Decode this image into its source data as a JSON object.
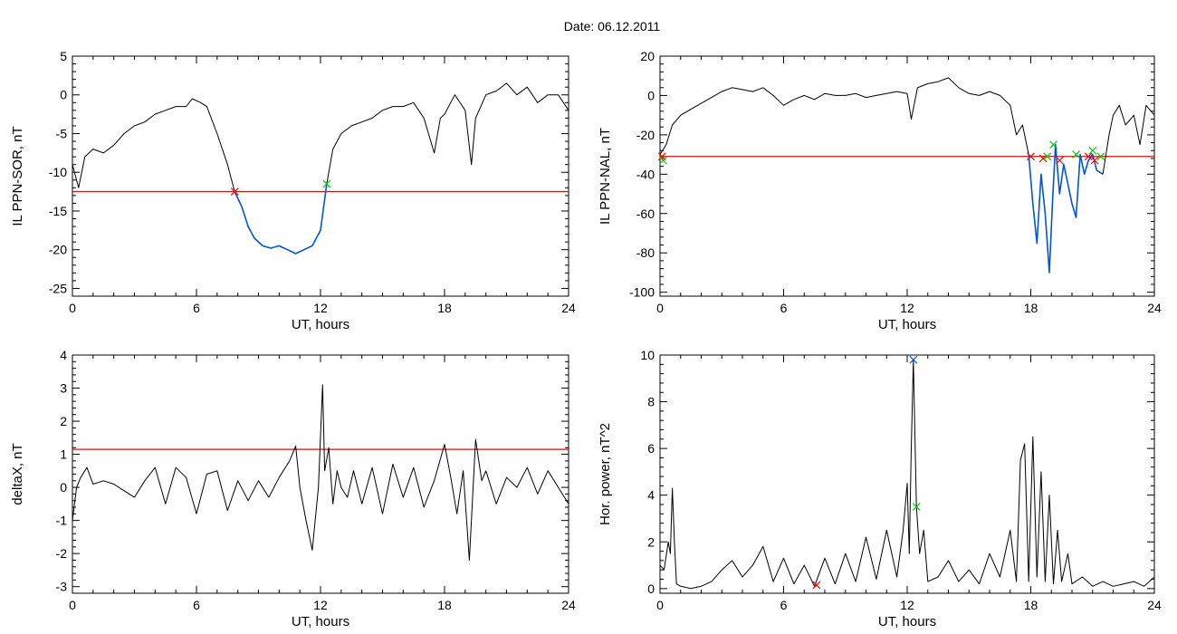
{
  "page": {
    "title": "Date:  06.12.2011"
  },
  "colors": {
    "axis": "#000000",
    "trace": "#000000",
    "threshold": "#ff0000",
    "segment": "#0055dd",
    "start_marker": "#ff0000",
    "end_marker": "#00cc00",
    "peak_marker": "#0055dd"
  },
  "chart_data": [
    {
      "id": "sor",
      "type": "line",
      "title": "",
      "xlabel": "UT, hours",
      "ylabel": "IL PPN-SOR, nT",
      "xlim": [
        0,
        24
      ],
      "ylim": [
        -26,
        5
      ],
      "xticks": [
        0,
        6,
        12,
        18,
        24
      ],
      "yticks": [
        5,
        0,
        -5,
        -10,
        -15,
        -20,
        -25
      ],
      "threshold": -12.5,
      "series": [
        {
          "style": "trace",
          "x": [
            0,
            0.3,
            0.6,
            1,
            1.5,
            2,
            2.5,
            3,
            3.5,
            4,
            4.5,
            5,
            5.5,
            5.8,
            6.2,
            6.5,
            7,
            7.5,
            7.85,
            8.2,
            8.5,
            8.8,
            9.2,
            9.6,
            10,
            10.4,
            10.8,
            11.2,
            11.6,
            12,
            12.3
          ],
          "y": [
            -9,
            -12,
            -8,
            -7,
            -7.5,
            -6.5,
            -5,
            -4,
            -3.5,
            -2.5,
            -2,
            -1.5,
            -1.5,
            -0.5,
            -1,
            -1.5,
            -5,
            -9,
            -12.5,
            -14.5,
            -17,
            -18.5,
            -19.5,
            -19.8,
            -19.5,
            -20,
            -20.5,
            -20,
            -19.5,
            -17.5,
            -11.5
          ]
        },
        {
          "style": "segment",
          "x": [
            7.85,
            8.2,
            8.5,
            8.8,
            9.2,
            9.6,
            10,
            10.4,
            10.8,
            11.2,
            11.6,
            12,
            12.3
          ],
          "y": [
            -12.5,
            -14.5,
            -17,
            -18.5,
            -19.5,
            -19.8,
            -19.5,
            -20,
            -20.5,
            -20,
            -19.5,
            -17.5,
            -11.5
          ]
        },
        {
          "style": "trace",
          "x": [
            12.3,
            12.6,
            13,
            13.5,
            14,
            14.5,
            15,
            15.5,
            16,
            16.5,
            17,
            17.5,
            17.8,
            18,
            18.5,
            19,
            19.3,
            19.5,
            20,
            20.5,
            21,
            21.5,
            22,
            22.5,
            23,
            23.5,
            24
          ],
          "y": [
            -11.5,
            -7,
            -5,
            -4,
            -3.5,
            -3,
            -2,
            -1.5,
            -1.5,
            -1,
            -3,
            -7.5,
            -3,
            -2.5,
            0,
            -2,
            -9,
            -3,
            0,
            0.5,
            1.5,
            0,
            1,
            -1,
            0,
            0,
            -2
          ]
        }
      ],
      "markers": [
        {
          "style": "start",
          "x": 7.85,
          "y": -12.5
        },
        {
          "style": "end",
          "x": 12.3,
          "y": -11.5
        }
      ]
    },
    {
      "id": "nal",
      "type": "line",
      "title": "",
      "xlabel": "UT, hours",
      "ylabel": "IL PPN-NAL, nT",
      "xlim": [
        0,
        24
      ],
      "ylim": [
        -102,
        20
      ],
      "xticks": [
        0,
        6,
        12,
        18,
        24
      ],
      "yticks": [
        20,
        0,
        -20,
        -40,
        -60,
        -80,
        -100
      ],
      "threshold": -31,
      "series": [
        {
          "style": "trace",
          "x": [
            0,
            0.3,
            0.6,
            1,
            1.5,
            2,
            2.5,
            3,
            3.5,
            4,
            4.5,
            5,
            5.5,
            6,
            6.5,
            7,
            7.5,
            8,
            8.5,
            9,
            9.5,
            10,
            10.5,
            11,
            11.5,
            12,
            12.2,
            12.5,
            13,
            13.5,
            14,
            14.5,
            15,
            15.5,
            16,
            16.5,
            17,
            17.3,
            17.6,
            17.9
          ],
          "y": [
            -30,
            -25,
            -15,
            -10,
            -7,
            -4,
            -1,
            2,
            4,
            3,
            2,
            4,
            0,
            -5,
            -2,
            0,
            -2,
            1,
            0,
            0,
            1,
            -1,
            0,
            1,
            2,
            1,
            -12,
            4,
            6,
            7,
            9,
            4,
            1,
            0,
            2,
            0,
            -5,
            -20,
            -15,
            -30
          ]
        },
        {
          "style": "segment",
          "x": [
            17.9,
            18.1,
            18.3,
            18.5,
            18.7,
            18.9,
            19.05,
            19.2,
            19.4,
            19.6,
            19.8,
            20,
            20.2,
            20.4,
            20.6,
            20.8,
            21,
            21.2,
            21.5
          ],
          "y": [
            -30,
            -55,
            -75,
            -40,
            -60,
            -90,
            -55,
            -25,
            -50,
            -35,
            -45,
            -55,
            -62,
            -30,
            -40,
            -33,
            -30,
            -38,
            -40
          ]
        },
        {
          "style": "trace",
          "x": [
            21.5,
            21.8,
            22,
            22.3,
            22.6,
            23,
            23.3,
            23.6,
            24
          ],
          "y": [
            -40,
            -20,
            -10,
            -5,
            -15,
            -10,
            -25,
            -5,
            -10
          ]
        }
      ],
      "markers": [
        {
          "style": "start",
          "x": 0.1,
          "y": -31
        },
        {
          "style": "end",
          "x": 0.15,
          "y": -33
        },
        {
          "style": "start",
          "x": 18,
          "y": -31
        },
        {
          "style": "start",
          "x": 18.6,
          "y": -32
        },
        {
          "style": "end",
          "x": 18.8,
          "y": -31
        },
        {
          "style": "end",
          "x": 19.1,
          "y": -25
        },
        {
          "style": "start",
          "x": 19.4,
          "y": -33
        },
        {
          "style": "end",
          "x": 20.2,
          "y": -30
        },
        {
          "style": "start",
          "x": 20.8,
          "y": -31
        },
        {
          "style": "end",
          "x": 21,
          "y": -28
        },
        {
          "style": "start",
          "x": 21.1,
          "y": -33
        },
        {
          "style": "end",
          "x": 21.4,
          "y": -31
        }
      ]
    },
    {
      "id": "deltax",
      "type": "line",
      "title": "",
      "xlabel": "UT, hours",
      "ylabel": "deltaX, nT",
      "xlim": [
        0,
        24
      ],
      "ylim": [
        -3.2,
        4
      ],
      "xticks": [
        0,
        6,
        12,
        18,
        24
      ],
      "yticks": [
        4,
        3,
        2,
        1,
        0,
        -1,
        -2,
        -3
      ],
      "threshold": 1.15,
      "series": [
        {
          "style": "trace",
          "x": [
            0,
            0.2,
            0.4,
            0.7,
            1,
            1.5,
            2,
            2.5,
            3,
            3.5,
            4,
            4.5,
            5,
            5.5,
            6,
            6.5,
            7,
            7.5,
            8,
            8.5,
            9,
            9.5,
            10,
            10.5,
            10.8,
            11,
            11.3,
            11.6,
            11.9,
            12.1,
            12.2,
            12.4,
            12.6,
            12.8,
            13,
            13.3,
            13.6,
            14,
            14.5,
            15,
            15.5,
            16,
            16.5,
            17,
            17.5,
            18,
            18.3,
            18.6,
            18.9,
            19.2,
            19.5,
            19.8,
            20,
            20.5,
            21,
            21.5,
            22,
            22.5,
            23,
            23.5,
            24
          ],
          "y": [
            -1,
            0,
            0.3,
            0.6,
            0.1,
            0.2,
            0.1,
            -0.1,
            -0.3,
            0.2,
            0.6,
            -0.5,
            0.6,
            0.3,
            -0.8,
            0.4,
            0.5,
            -0.7,
            0.2,
            -0.4,
            0.2,
            -0.3,
            0.3,
            0.8,
            1.25,
            0,
            -1,
            -1.9,
            0,
            3.1,
            0.5,
            1.2,
            -0.5,
            0.5,
            0,
            -0.3,
            0.5,
            -0.5,
            0.6,
            -0.8,
            0.7,
            -0.3,
            0.6,
            -0.6,
            0.2,
            1.3,
            0.3,
            -0.8,
            0.5,
            -2.2,
            1.45,
            0.2,
            0.5,
            -0.5,
            0.3,
            0,
            0.6,
            -0.2,
            0.5,
            0,
            -0.5
          ]
        }
      ],
      "markers": []
    },
    {
      "id": "power",
      "type": "line",
      "title": "",
      "xlabel": "UT, hours",
      "ylabel": "Hor. power, nT^2",
      "xlim": [
        0,
        24
      ],
      "ylim": [
        -0.2,
        10
      ],
      "xticks": [
        0,
        6,
        12,
        18,
        24
      ],
      "yticks": [
        10,
        8,
        6,
        4,
        2,
        0
      ],
      "threshold": null,
      "series": [
        {
          "style": "trace",
          "x": [
            0,
            0.2,
            0.4,
            0.5,
            0.6,
            0.7,
            0.8,
            1,
            1.5,
            2,
            2.5,
            3,
            3.5,
            4,
            4.5,
            5,
            5.5,
            6,
            6.5,
            7,
            7.5,
            8,
            8.5,
            9,
            9.5,
            10,
            10.5,
            11,
            11.5,
            11.8,
            12,
            12.1,
            12.2,
            12.3,
            12.45,
            12.6,
            12.8,
            13,
            13.5,
            14,
            14.5,
            15,
            15.5,
            16,
            16.5,
            17,
            17.3,
            17.5,
            17.7,
            17.9,
            18.1,
            18.3,
            18.5,
            18.7,
            18.9,
            19.1,
            19.3,
            19.5,
            19.8,
            20,
            20.5,
            21,
            21.5,
            22,
            22.5,
            23,
            23.5,
            24
          ],
          "y": [
            1,
            0.8,
            2,
            1.5,
            4.3,
            2,
            0.2,
            0.1,
            0,
            0.1,
            0.3,
            0.8,
            1.2,
            0.5,
            1,
            1.8,
            0.3,
            1.3,
            0.2,
            1,
            0.1,
            1.3,
            0.2,
            1.5,
            0.3,
            2.2,
            0.4,
            2.5,
            0.5,
            2.5,
            4.5,
            1.5,
            6,
            9.8,
            3.5,
            1.5,
            2.5,
            0.3,
            0.5,
            1.2,
            0.3,
            0.8,
            0.2,
            1.5,
            0.5,
            2.5,
            0.3,
            5.5,
            6.2,
            0.3,
            6.5,
            0.5,
            5,
            0.3,
            4,
            0.2,
            2.5,
            0.3,
            1.5,
            0.2,
            0.5,
            0.1,
            0.3,
            0.1,
            0.2,
            0.3,
            0.1,
            0.5
          ]
        }
      ],
      "markers": [
        {
          "style": "start",
          "x": 7.6,
          "y": 0.15
        },
        {
          "style": "end",
          "x": 12.45,
          "y": 3.5
        },
        {
          "style": "peak",
          "x": 12.3,
          "y": 9.8
        }
      ]
    }
  ]
}
